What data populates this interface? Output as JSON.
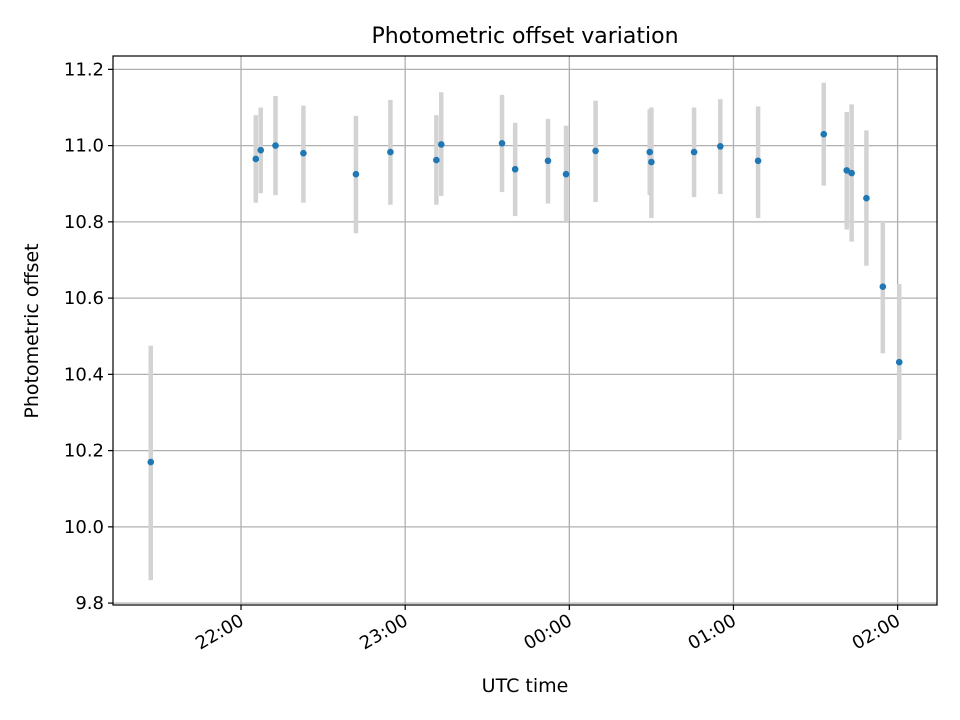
{
  "chart_data": {
    "type": "scatter",
    "title": "Photometric offset variation",
    "xlabel": "UTC time",
    "ylabel": "Photometric offset",
    "x_unit": "hours",
    "xlim": [
      21.22,
      26.24
    ],
    "ylim": [
      9.795,
      11.235
    ],
    "grid": true,
    "xticks": [
      {
        "value": 22,
        "label": "22:00"
      },
      {
        "value": 23,
        "label": "23:00"
      },
      {
        "value": 24,
        "label": "00:00"
      },
      {
        "value": 25,
        "label": "01:00"
      },
      {
        "value": 26,
        "label": "02:00"
      }
    ],
    "yticks": [
      {
        "value": 9.8,
        "label": "9.8"
      },
      {
        "value": 10.0,
        "label": "10.0"
      },
      {
        "value": 10.2,
        "label": "10.2"
      },
      {
        "value": 10.4,
        "label": "10.4"
      },
      {
        "value": 10.6,
        "label": "10.6"
      },
      {
        "value": 10.8,
        "label": "10.8"
      },
      {
        "value": 11.0,
        "label": "11.0"
      },
      {
        "value": 11.2,
        "label": "11.2"
      }
    ],
    "marker_color": "#1f77b4",
    "errorbar_color": "#d3d3d3",
    "points": [
      {
        "x": 21.45,
        "y": 10.17,
        "err_low": 9.86,
        "err_high": 10.475
      },
      {
        "x": 22.09,
        "y": 10.965,
        "err_low": 10.85,
        "err_high": 11.08
      },
      {
        "x": 22.12,
        "y": 10.988,
        "err_low": 10.875,
        "err_high": 11.1
      },
      {
        "x": 22.21,
        "y": 11.0,
        "err_low": 10.87,
        "err_high": 11.13
      },
      {
        "x": 22.38,
        "y": 10.98,
        "err_low": 10.85,
        "err_high": 11.105
      },
      {
        "x": 22.7,
        "y": 10.925,
        "err_low": 10.77,
        "err_high": 11.078
      },
      {
        "x": 22.91,
        "y": 10.983,
        "err_low": 10.845,
        "err_high": 11.12
      },
      {
        "x": 23.19,
        "y": 10.962,
        "err_low": 10.845,
        "err_high": 11.08
      },
      {
        "x": 23.22,
        "y": 11.003,
        "err_low": 10.868,
        "err_high": 11.14
      },
      {
        "x": 23.59,
        "y": 11.006,
        "err_low": 10.878,
        "err_high": 11.133
      },
      {
        "x": 23.67,
        "y": 10.938,
        "err_low": 10.815,
        "err_high": 11.06
      },
      {
        "x": 23.87,
        "y": 10.96,
        "err_low": 10.848,
        "err_high": 11.07
      },
      {
        "x": 23.98,
        "y": 10.925,
        "err_low": 10.8,
        "err_high": 11.052
      },
      {
        "x": 24.16,
        "y": 10.986,
        "err_low": 10.852,
        "err_high": 11.118
      },
      {
        "x": 24.49,
        "y": 10.983,
        "err_low": 10.87,
        "err_high": 11.095
      },
      {
        "x": 24.5,
        "y": 10.957,
        "err_low": 10.81,
        "err_high": 11.1
      },
      {
        "x": 24.76,
        "y": 10.983,
        "err_low": 10.865,
        "err_high": 11.1
      },
      {
        "x": 24.92,
        "y": 10.998,
        "err_low": 10.873,
        "err_high": 11.122
      },
      {
        "x": 25.15,
        "y": 10.96,
        "err_low": 10.81,
        "err_high": 11.103
      },
      {
        "x": 25.55,
        "y": 11.03,
        "err_low": 10.895,
        "err_high": 11.165
      },
      {
        "x": 25.69,
        "y": 10.935,
        "err_low": 10.78,
        "err_high": 11.088
      },
      {
        "x": 25.72,
        "y": 10.928,
        "err_low": 10.748,
        "err_high": 11.108
      },
      {
        "x": 25.81,
        "y": 10.862,
        "err_low": 10.685,
        "err_high": 11.04
      },
      {
        "x": 25.91,
        "y": 10.63,
        "err_low": 10.455,
        "err_high": 10.803
      },
      {
        "x": 26.01,
        "y": 10.432,
        "err_low": 10.228,
        "err_high": 10.637
      }
    ]
  }
}
